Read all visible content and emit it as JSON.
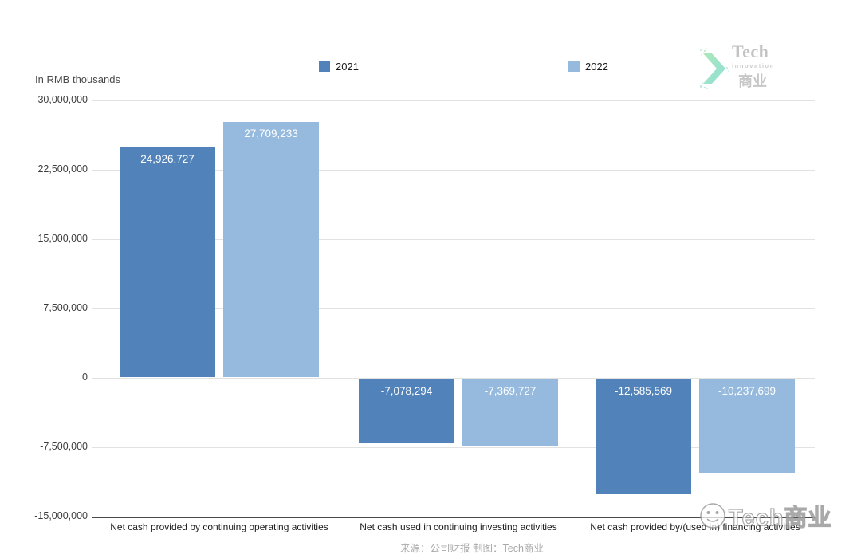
{
  "unit_label": "In RMB thousands",
  "caption": "来源：公司财报 制图：Tech商业",
  "watermark_text": "Tech商业",
  "logo": {
    "name": "Tech",
    "subtitle": "innovation",
    "cjk": "商业"
  },
  "colors": {
    "series_2021": "#5183ba",
    "series_2022": "#96bade",
    "gridline": "#e2e2e2",
    "axisline": "#4a4a4a",
    "logo_gradient_start": "#aee8b8",
    "logo_gradient_end": "#8fdfda"
  },
  "chart_data": {
    "type": "bar",
    "title": "",
    "ylabel": "In RMB thousands",
    "xlabel": "",
    "categories": [
      "Net cash provided by continuing operating activities",
      "Net cash used in continuing investing activities",
      "Net cash provided by/(used in) financing activities"
    ],
    "series": [
      {
        "name": "2021",
        "color": "#5183ba",
        "values": [
          24926727,
          -7078294,
          -12585569
        ]
      },
      {
        "name": "2022",
        "color": "#96bade",
        "values": [
          27709233,
          -7369727,
          -10237699
        ]
      }
    ],
    "data_labels": [
      [
        "24,926,727",
        "-7,078,294",
        "-12,585,569"
      ],
      [
        "27,709,233",
        "-7,369,727",
        "-10,237,699"
      ]
    ],
    "ylim": [
      -15000000,
      30000000
    ],
    "yticks": [
      30000000,
      22500000,
      15000000,
      7500000,
      0,
      -7500000,
      -15000000
    ],
    "grid": true,
    "legend_position": "top"
  }
}
